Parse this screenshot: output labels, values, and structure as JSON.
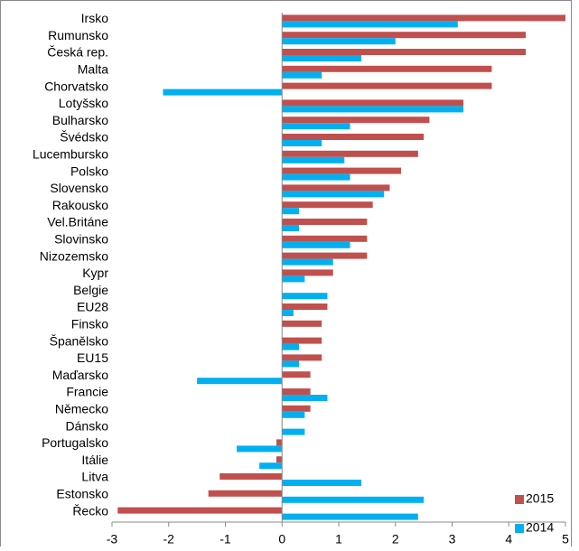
{
  "chart_data": {
    "type": "hbar",
    "categories": [
      "Irsko",
      "Rumunsko",
      "Česká rep.",
      "Malta",
      "Chorvatsko",
      "Lotyšsko",
      "Bulharsko",
      "Švédsko",
      "Lucembursko",
      "Polsko",
      "Slovensko",
      "Rakousko",
      "Vel.Británe",
      "Slovinsko",
      "Nizozemsko",
      "Kypr",
      "Belgie",
      "EU28",
      "Finsko",
      "Španělsko",
      "EU15",
      "Maďarsko",
      "Francie",
      "Německo",
      "Dánsko",
      "Portugalsko",
      "Itálie",
      "Litva",
      "Estonsko",
      "Řecko"
    ],
    "series": [
      {
        "name": "2015",
        "color": "#c0504d",
        "values": [
          5.0,
          4.3,
          4.3,
          3.7,
          3.7,
          3.2,
          2.6,
          2.5,
          2.4,
          2.1,
          1.9,
          1.6,
          1.5,
          1.5,
          1.5,
          0.9,
          0,
          0.8,
          0.7,
          0.7,
          0.7,
          0.5,
          0.5,
          0.5,
          0,
          -0.1,
          -0.1,
          -1.1,
          -1.3,
          -2.9
        ]
      },
      {
        "name": "2014",
        "color": "#00b0f0",
        "values": [
          3.1,
          2.0,
          1.4,
          0.7,
          -2.1,
          3.2,
          1.2,
          0.7,
          1.1,
          1.2,
          1.8,
          0.3,
          0.3,
          1.2,
          0.9,
          0.4,
          0.8,
          0.2,
          0,
          0.3,
          0.3,
          -1.5,
          0.8,
          0.4,
          0.4,
          -0.8,
          -0.4,
          1.4,
          2.5,
          2.4
        ]
      }
    ],
    "xlim": [
      -3,
      5
    ],
    "xticks": [
      -3,
      -2,
      -1,
      0,
      1,
      2,
      3,
      4,
      5
    ],
    "legend": "bottom-right"
  }
}
